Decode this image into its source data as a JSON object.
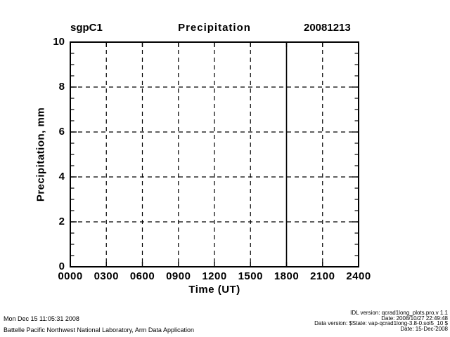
{
  "colors": {
    "foreground": "#000000",
    "background": "#ffffff"
  },
  "chart_data": {
    "type": "line",
    "site_label": "sgpC1",
    "title": "Precipitation",
    "date_label": "20081213",
    "xlabel": "Time (UT)",
    "ylabel": "Precipitation, mm",
    "xlim": [
      0,
      2400
    ],
    "ylim": [
      0,
      10
    ],
    "x_ticks": [
      0,
      300,
      600,
      900,
      1200,
      1500,
      1800,
      2100,
      2400
    ],
    "x_tick_labels": [
      "0000",
      "0300",
      "0600",
      "0900",
      "1200",
      "1500",
      "1800",
      "2100",
      "2400"
    ],
    "y_ticks": [
      0,
      2,
      4,
      6,
      8,
      10
    ],
    "y_tick_labels": [
      "0",
      "2",
      "4",
      "6",
      "8",
      "10"
    ],
    "y_minor_interval": 0.5,
    "grid": "dashed",
    "legend": "none",
    "series": [],
    "solid_vline_x": 1800
  },
  "footer_left": [
    "Mon Dec 15 11:05:31 2008",
    "Battelle Pacific Northwest National Laboratory, Arm Data Application"
  ],
  "footer_right": [
    "IDL version: qcrad1long_plots.pro,v 1.1",
    "Date: 2008/10/27 22:49:48",
    "Data version: $State: vap-qcrad1long-3.8-0.sol5_10 $",
    "Date: 15-Dec-2008"
  ]
}
